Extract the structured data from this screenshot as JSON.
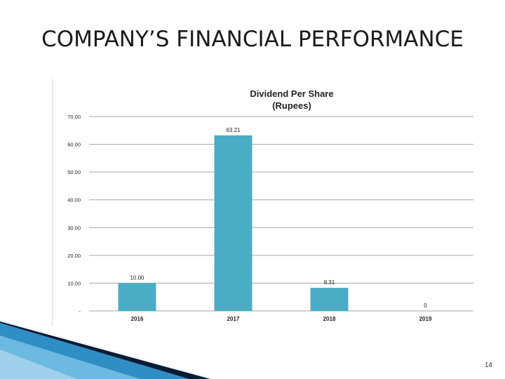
{
  "slide": {
    "title": "COMPANY’S FINANCIAL PERFORMANCE",
    "page_number": "14"
  },
  "colors": {
    "bar": "#4bacc6",
    "grid": "#a6a6a6",
    "deco_dark": "#0b1b33",
    "deco_blue": "#2f8fc4",
    "deco_light": "#9fd0ec"
  },
  "chart_data": {
    "type": "bar",
    "title": "Dividend Per Share",
    "subtitle": "(Rupees)",
    "categories": [
      "2016",
      "2017",
      "2018",
      "2019"
    ],
    "values": [
      10.0,
      63.21,
      8.31,
      0
    ],
    "data_labels": [
      "10.00",
      "63.21",
      "8.31",
      "0"
    ],
    "y_ticks": [
      "-",
      "10.00",
      "20.00",
      "30.00",
      "40.00",
      "50.00",
      "60.00",
      "70.00"
    ],
    "ylim": [
      0,
      70
    ],
    "grid": true,
    "xlabel": "",
    "ylabel": ""
  }
}
